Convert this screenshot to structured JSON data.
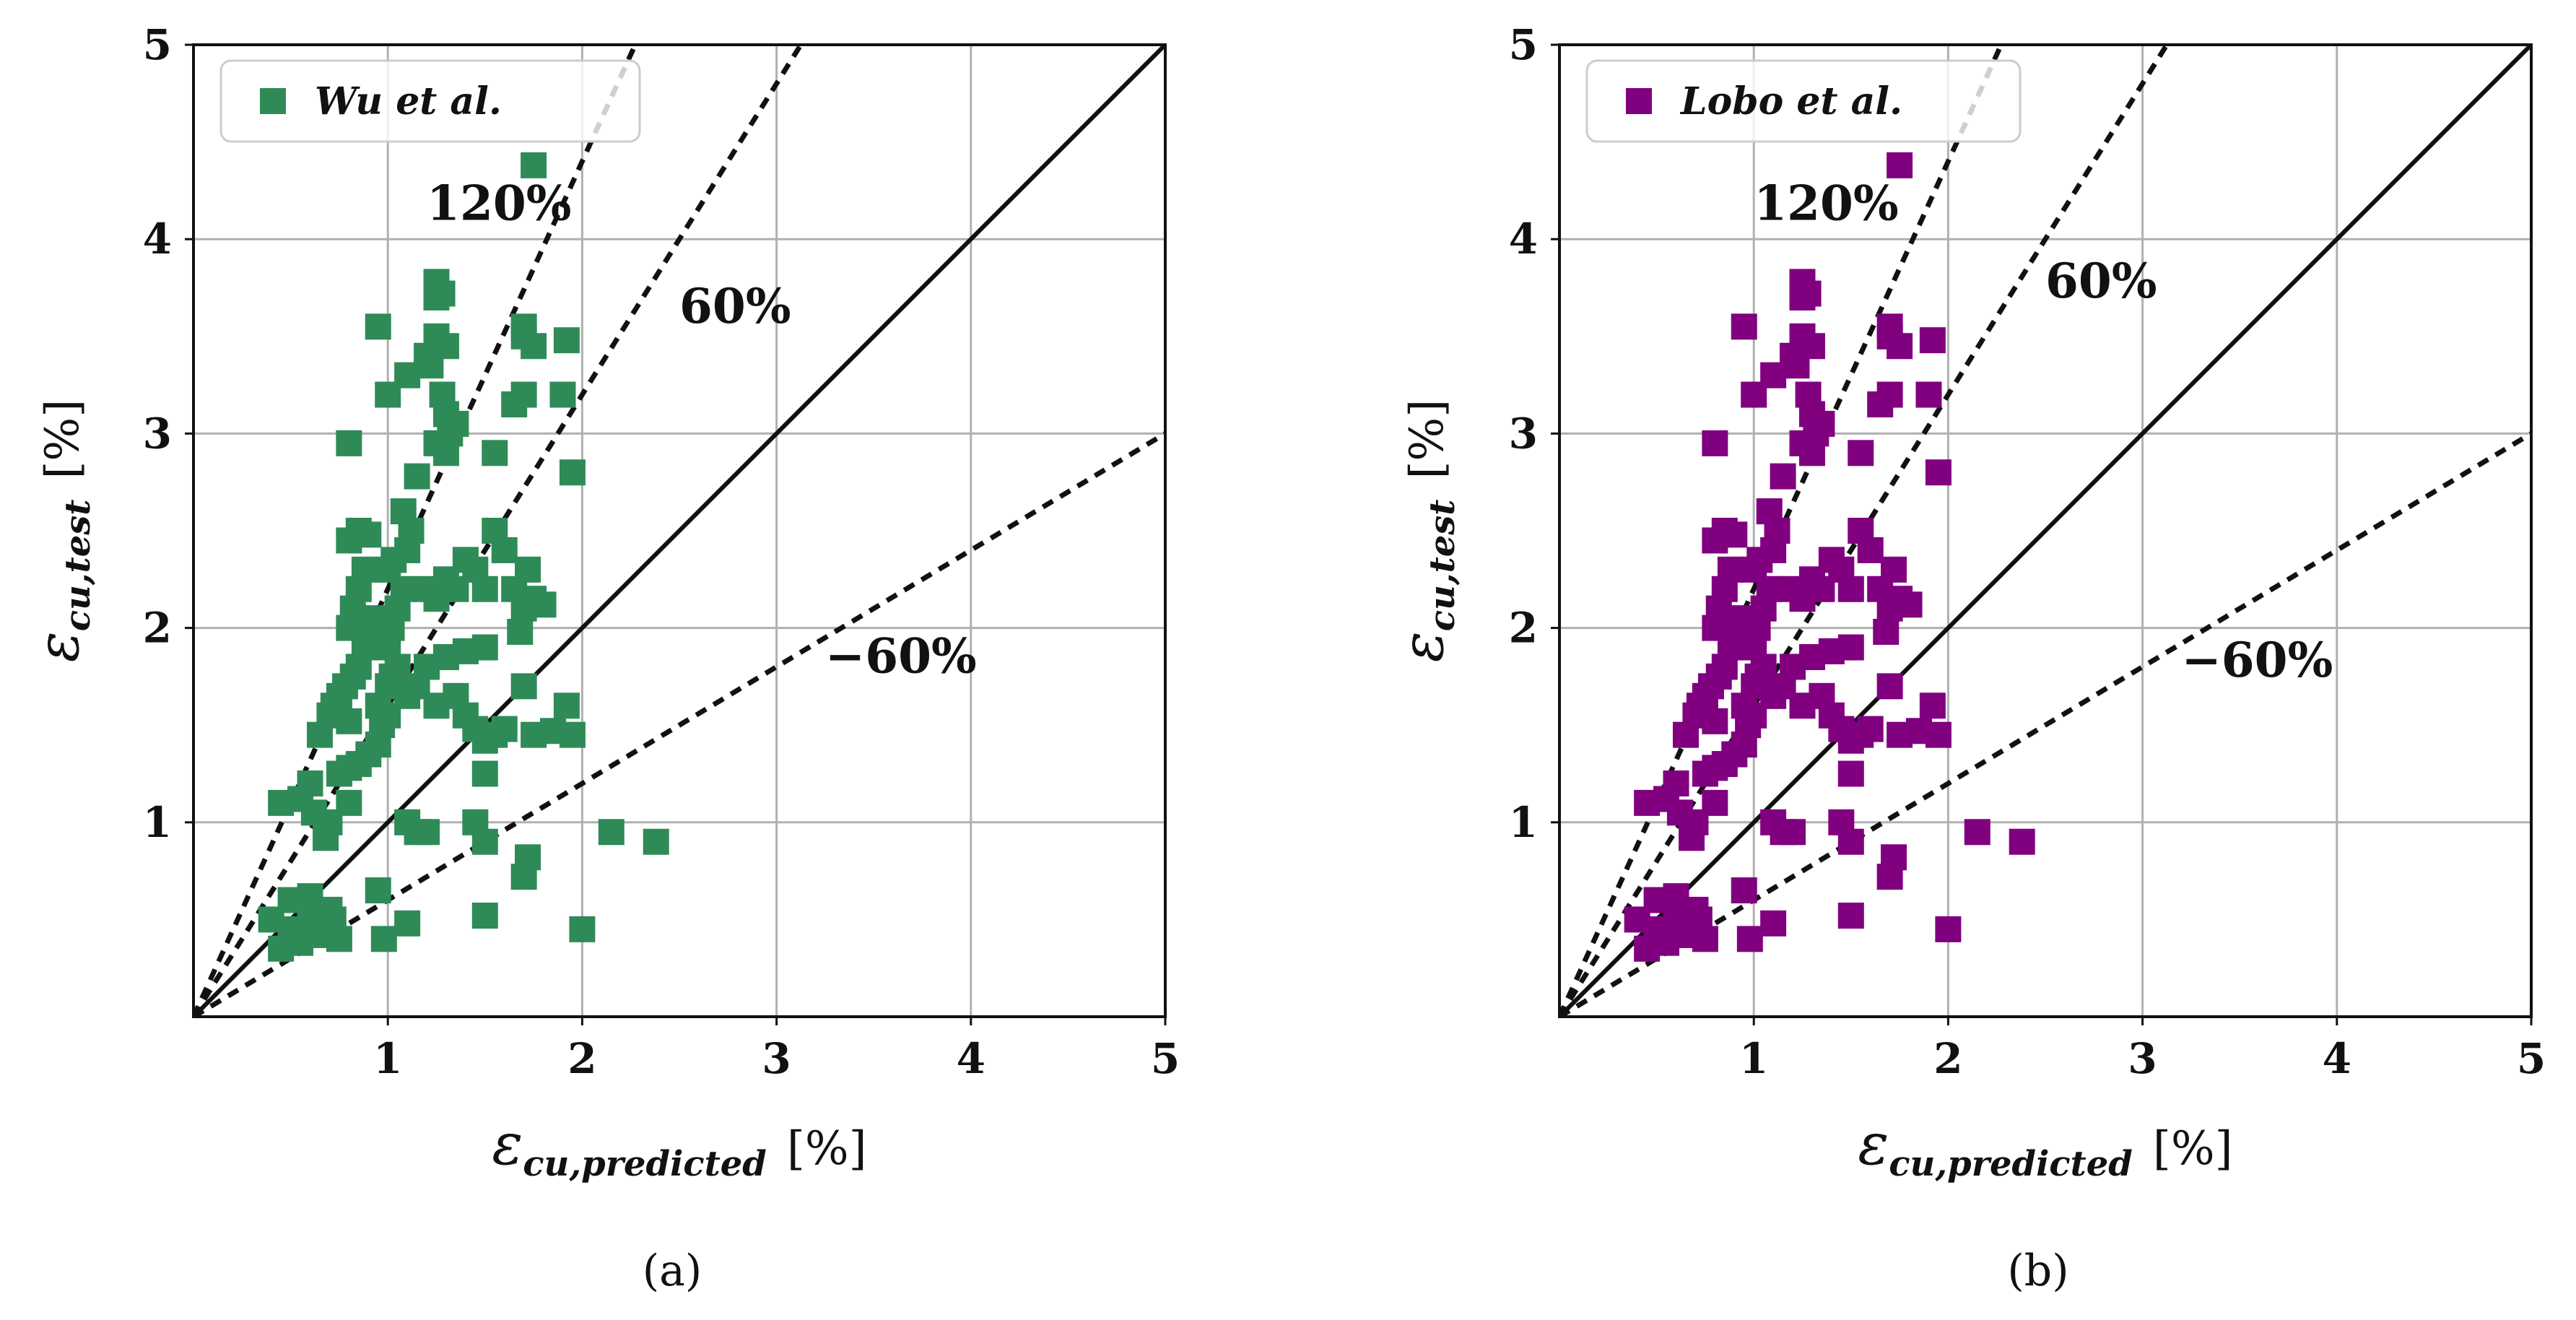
{
  "chart_data": [
    {
      "type": "scatter",
      "panel_label": "(a)",
      "xlabel": {
        "symbol": "ε",
        "subscript": "cu,predicted",
        "unit": "[%]"
      },
      "ylabel": {
        "symbol": "ε",
        "subscript": "cu,test",
        "unit": "[%]"
      },
      "xlim": [
        0,
        5
      ],
      "ylim": [
        0,
        5
      ],
      "xticks": [
        "1",
        "2",
        "3",
        "4",
        "5"
      ],
      "yticks": [
        "1",
        "2",
        "3",
        "4",
        "5"
      ],
      "grid": true,
      "legend": {
        "location": "top-left",
        "label": "Wu et al."
      },
      "marker_color": "#2e8b57",
      "reference_lines": [
        {
          "label": "",
          "slope": 1.0,
          "style": "solid"
        },
        {
          "label": "120%",
          "slope": 2.2,
          "style": "dashed"
        },
        {
          "label": "60%",
          "slope": 1.6,
          "style": "dashed"
        },
        {
          "label": "−60%",
          "slope": 0.6,
          "style": "dashed"
        }
      ],
      "annotations": [
        {
          "text": "120%",
          "x": 1.2,
          "y": 4.1
        },
        {
          "text": "60%",
          "x": 2.5,
          "y": 3.57
        },
        {
          "text": "−60%",
          "x": 3.25,
          "y": 1.77
        }
      ],
      "points": [
        [
          0.45,
          0.35
        ],
        [
          0.5,
          0.45
        ],
        [
          0.55,
          0.38
        ],
        [
          0.6,
          0.5
        ],
        [
          0.65,
          0.42
        ],
        [
          0.7,
          0.55
        ],
        [
          0.75,
          0.4
        ],
        [
          0.5,
          0.6
        ],
        [
          0.6,
          0.62
        ],
        [
          0.72,
          0.5
        ],
        [
          0.4,
          0.5
        ],
        [
          0.45,
          1.1
        ],
        [
          0.55,
          1.12
        ],
        [
          0.62,
          1.05
        ],
        [
          0.7,
          1.0
        ],
        [
          0.8,
          1.1
        ],
        [
          0.68,
          0.92
        ],
        [
          0.6,
          1.2
        ],
        [
          0.65,
          1.45
        ],
        [
          0.7,
          1.55
        ],
        [
          0.72,
          1.6
        ],
        [
          0.75,
          1.65
        ],
        [
          0.78,
          1.7
        ],
        [
          0.8,
          1.52
        ],
        [
          0.82,
          1.75
        ],
        [
          0.85,
          1.8
        ],
        [
          0.88,
          1.9
        ],
        [
          0.9,
          1.95
        ],
        [
          0.8,
          2.0
        ],
        [
          0.82,
          2.1
        ],
        [
          0.85,
          2.2
        ],
        [
          0.88,
          2.3
        ],
        [
          0.8,
          2.45
        ],
        [
          0.85,
          2.5
        ],
        [
          0.9,
          2.48
        ],
        [
          0.92,
          2.05
        ],
        [
          0.95,
          1.6
        ],
        [
          0.97,
          1.5
        ],
        [
          0.9,
          1.35
        ],
        [
          0.85,
          1.3
        ],
        [
          0.8,
          1.28
        ],
        [
          0.75,
          1.25
        ],
        [
          0.95,
          1.4
        ],
        [
          1.0,
          1.55
        ],
        [
          1.0,
          1.7
        ],
        [
          1.02,
          1.75
        ],
        [
          1.05,
          1.8
        ],
        [
          1.0,
          1.9
        ],
        [
          1.02,
          2.0
        ],
        [
          1.05,
          2.1
        ],
        [
          1.08,
          2.2
        ],
        [
          1.0,
          2.3
        ],
        [
          1.03,
          2.35
        ],
        [
          1.1,
          2.4
        ],
        [
          1.12,
          2.5
        ],
        [
          1.08,
          2.6
        ],
        [
          1.15,
          2.78
        ],
        [
          0.8,
          2.95
        ],
        [
          1.0,
          3.2
        ],
        [
          1.1,
          3.3
        ],
        [
          1.2,
          3.4
        ],
        [
          1.25,
          3.5
        ],
        [
          1.3,
          3.45
        ],
        [
          1.22,
          3.35
        ],
        [
          1.28,
          3.2
        ],
        [
          1.3,
          3.1
        ],
        [
          1.32,
          3.0
        ],
        [
          1.25,
          2.95
        ],
        [
          1.3,
          2.9
        ],
        [
          1.35,
          3.05
        ],
        [
          0.95,
          3.55
        ],
        [
          1.25,
          3.78
        ],
        [
          1.25,
          3.7
        ],
        [
          1.28,
          3.72
        ],
        [
          1.7,
          3.55
        ],
        [
          1.7,
          3.5
        ],
        [
          1.75,
          3.45
        ],
        [
          1.65,
          3.15
        ],
        [
          1.7,
          3.2
        ],
        [
          1.92,
          3.48
        ],
        [
          1.9,
          3.2
        ],
        [
          1.55,
          2.9
        ],
        [
          1.2,
          2.2
        ],
        [
          1.25,
          2.15
        ],
        [
          1.3,
          2.25
        ],
        [
          1.35,
          2.2
        ],
        [
          1.4,
          2.35
        ],
        [
          1.45,
          2.3
        ],
        [
          1.5,
          2.2
        ],
        [
          1.55,
          2.5
        ],
        [
          1.6,
          2.4
        ],
        [
          1.65,
          2.2
        ],
        [
          1.7,
          2.1
        ],
        [
          1.72,
          2.3
        ],
        [
          1.75,
          2.15
        ],
        [
          1.68,
          1.98
        ],
        [
          1.8,
          2.12
        ],
        [
          1.5,
          1.9
        ],
        [
          1.4,
          1.88
        ],
        [
          1.3,
          1.85
        ],
        [
          1.2,
          1.8
        ],
        [
          1.15,
          1.7
        ],
        [
          1.1,
          1.65
        ],
        [
          1.25,
          1.6
        ],
        [
          1.35,
          1.65
        ],
        [
          1.4,
          1.55
        ],
        [
          1.45,
          1.48
        ],
        [
          1.5,
          1.42
        ],
        [
          1.55,
          1.45
        ],
        [
          1.6,
          1.48
        ],
        [
          1.7,
          1.7
        ],
        [
          1.75,
          1.45
        ],
        [
          1.85,
          1.47
        ],
        [
          1.95,
          1.45
        ],
        [
          1.92,
          1.6
        ],
        [
          1.5,
          1.25
        ],
        [
          1.1,
          1.0
        ],
        [
          1.15,
          0.95
        ],
        [
          1.2,
          0.95
        ],
        [
          1.45,
          1.0
        ],
        [
          1.5,
          0.9
        ],
        [
          1.72,
          0.82
        ],
        [
          1.7,
          0.72
        ],
        [
          1.95,
          2.8
        ],
        [
          0.95,
          0.65
        ],
        [
          0.98,
          0.4
        ],
        [
          1.1,
          0.48
        ],
        [
          1.5,
          0.52
        ],
        [
          2.0,
          0.45
        ],
        [
          2.15,
          0.95
        ],
        [
          2.38,
          0.9
        ],
        [
          1.75,
          4.38
        ]
      ]
    },
    {
      "type": "scatter",
      "panel_label": "(b)",
      "xlabel": {
        "symbol": "ε",
        "subscript": "cu,predicted",
        "unit": "[%]"
      },
      "ylabel": {
        "symbol": "ε",
        "subscript": "cu,test",
        "unit": "[%]"
      },
      "xlim": [
        0,
        5
      ],
      "ylim": [
        0,
        5
      ],
      "xticks": [
        "1",
        "2",
        "3",
        "4",
        "5"
      ],
      "yticks": [
        "1",
        "2",
        "3",
        "4",
        "5"
      ],
      "grid": true,
      "legend": {
        "location": "top-left",
        "label": "Lobo et al."
      },
      "marker_color": "#800080",
      "reference_lines": [
        {
          "label": "",
          "slope": 1.0,
          "style": "solid"
        },
        {
          "label": "120%",
          "slope": 2.2,
          "style": "dashed"
        },
        {
          "label": "60%",
          "slope": 1.6,
          "style": "dashed"
        },
        {
          "label": "−60%",
          "slope": 0.6,
          "style": "dashed"
        }
      ],
      "annotations": [
        {
          "text": "120%",
          "x": 1.0,
          "y": 4.1
        },
        {
          "text": "60%",
          "x": 2.5,
          "y": 3.7
        },
        {
          "text": "−60%",
          "x": 3.2,
          "y": 1.75
        }
      ],
      "points": [
        [
          0.45,
          0.35
        ],
        [
          0.5,
          0.45
        ],
        [
          0.55,
          0.38
        ],
        [
          0.6,
          0.5
        ],
        [
          0.65,
          0.42
        ],
        [
          0.7,
          0.55
        ],
        [
          0.75,
          0.4
        ],
        [
          0.5,
          0.6
        ],
        [
          0.6,
          0.62
        ],
        [
          0.72,
          0.5
        ],
        [
          0.4,
          0.5
        ],
        [
          0.45,
          1.1
        ],
        [
          0.55,
          1.12
        ],
        [
          0.62,
          1.05
        ],
        [
          0.7,
          1.0
        ],
        [
          0.8,
          1.1
        ],
        [
          0.68,
          0.92
        ],
        [
          0.6,
          1.2
        ],
        [
          0.65,
          1.45
        ],
        [
          0.7,
          1.55
        ],
        [
          0.72,
          1.6
        ],
        [
          0.75,
          1.65
        ],
        [
          0.78,
          1.7
        ],
        [
          0.8,
          1.52
        ],
        [
          0.82,
          1.75
        ],
        [
          0.85,
          1.8
        ],
        [
          0.88,
          1.9
        ],
        [
          0.9,
          1.95
        ],
        [
          0.8,
          2.0
        ],
        [
          0.82,
          2.1
        ],
        [
          0.85,
          2.2
        ],
        [
          0.88,
          2.3
        ],
        [
          0.8,
          2.45
        ],
        [
          0.85,
          2.5
        ],
        [
          0.9,
          2.48
        ],
        [
          0.92,
          2.05
        ],
        [
          0.95,
          1.6
        ],
        [
          0.97,
          1.5
        ],
        [
          0.9,
          1.35
        ],
        [
          0.85,
          1.3
        ],
        [
          0.8,
          1.28
        ],
        [
          0.75,
          1.25
        ],
        [
          0.95,
          1.4
        ],
        [
          1.0,
          1.55
        ],
        [
          1.0,
          1.7
        ],
        [
          1.02,
          1.75
        ],
        [
          1.05,
          1.8
        ],
        [
          1.0,
          1.9
        ],
        [
          1.02,
          2.0
        ],
        [
          1.05,
          2.1
        ],
        [
          1.08,
          2.2
        ],
        [
          1.0,
          2.3
        ],
        [
          1.03,
          2.35
        ],
        [
          1.1,
          2.4
        ],
        [
          1.12,
          2.5
        ],
        [
          1.08,
          2.6
        ],
        [
          1.15,
          2.78
        ],
        [
          0.8,
          2.95
        ],
        [
          1.0,
          3.2
        ],
        [
          1.1,
          3.3
        ],
        [
          1.2,
          3.4
        ],
        [
          1.25,
          3.5
        ],
        [
          1.3,
          3.45
        ],
        [
          1.22,
          3.35
        ],
        [
          1.28,
          3.2
        ],
        [
          1.3,
          3.1
        ],
        [
          1.32,
          3.0
        ],
        [
          1.25,
          2.95
        ],
        [
          1.3,
          2.9
        ],
        [
          1.35,
          3.05
        ],
        [
          0.95,
          3.55
        ],
        [
          1.25,
          3.78
        ],
        [
          1.25,
          3.7
        ],
        [
          1.28,
          3.72
        ],
        [
          1.7,
          3.55
        ],
        [
          1.7,
          3.5
        ],
        [
          1.75,
          3.45
        ],
        [
          1.65,
          3.15
        ],
        [
          1.7,
          3.2
        ],
        [
          1.92,
          3.48
        ],
        [
          1.9,
          3.2
        ],
        [
          1.55,
          2.9
        ],
        [
          1.2,
          2.2
        ],
        [
          1.25,
          2.15
        ],
        [
          1.3,
          2.25
        ],
        [
          1.35,
          2.2
        ],
        [
          1.4,
          2.35
        ],
        [
          1.45,
          2.3
        ],
        [
          1.5,
          2.2
        ],
        [
          1.55,
          2.5
        ],
        [
          1.6,
          2.4
        ],
        [
          1.65,
          2.2
        ],
        [
          1.7,
          2.1
        ],
        [
          1.72,
          2.3
        ],
        [
          1.75,
          2.15
        ],
        [
          1.68,
          1.98
        ],
        [
          1.8,
          2.12
        ],
        [
          1.5,
          1.9
        ],
        [
          1.4,
          1.88
        ],
        [
          1.3,
          1.85
        ],
        [
          1.2,
          1.8
        ],
        [
          1.15,
          1.7
        ],
        [
          1.1,
          1.65
        ],
        [
          1.25,
          1.6
        ],
        [
          1.35,
          1.65
        ],
        [
          1.4,
          1.55
        ],
        [
          1.45,
          1.48
        ],
        [
          1.5,
          1.42
        ],
        [
          1.55,
          1.45
        ],
        [
          1.6,
          1.48
        ],
        [
          1.7,
          1.7
        ],
        [
          1.75,
          1.45
        ],
        [
          1.85,
          1.47
        ],
        [
          1.95,
          1.45
        ],
        [
          1.92,
          1.6
        ],
        [
          1.5,
          1.25
        ],
        [
          1.1,
          1.0
        ],
        [
          1.15,
          0.95
        ],
        [
          1.2,
          0.95
        ],
        [
          1.45,
          1.0
        ],
        [
          1.5,
          0.9
        ],
        [
          1.72,
          0.82
        ],
        [
          1.7,
          0.72
        ],
        [
          1.95,
          2.8
        ],
        [
          0.95,
          0.65
        ],
        [
          0.98,
          0.4
        ],
        [
          1.1,
          0.48
        ],
        [
          1.5,
          0.52
        ],
        [
          2.0,
          0.45
        ],
        [
          2.15,
          0.95
        ],
        [
          2.38,
          0.9
        ],
        [
          1.75,
          4.38
        ]
      ]
    }
  ]
}
